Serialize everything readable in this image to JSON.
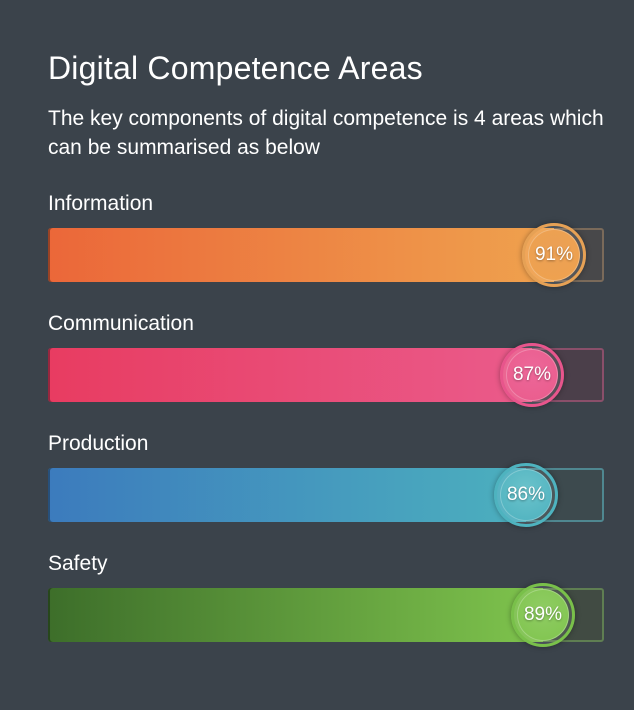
{
  "header": {
    "title": "Digital Competence Areas",
    "subtitle": "The key components of digital competence is 4 areas which can be summarised as below"
  },
  "skills": [
    {
      "label": "Information",
      "value_text": "91%",
      "value": 0.91,
      "gradient_start": "#eb6739",
      "gradient_end": "#efa24e",
      "track_color": "#48484a",
      "track_border": "#7a6a5a",
      "knob_border": "#e6a155",
      "knob_fill": "#eba055"
    },
    {
      "label": "Communication",
      "value_text": "87%",
      "value": 0.87,
      "gradient_start": "#e83c61",
      "gradient_end": "#ea5b8b",
      "track_color": "#4b3f4a",
      "track_border": "#8a4f6a",
      "knob_border": "#e8558c",
      "knob_fill": "#ec6799"
    },
    {
      "label": "Production",
      "value_text": "86%",
      "value": 0.86,
      "gradient_start": "#3c7bbd",
      "gradient_end": "#4cb0be",
      "track_color": "#3d4a4e",
      "track_border": "#4f8790",
      "knob_border": "#4eb3bf",
      "knob_fill": "#6bc3cb"
    },
    {
      "label": "Safety",
      "value_text": "89%",
      "value": 0.89,
      "gradient_start": "#3d6e2a",
      "gradient_end": "#7fc44d",
      "track_color": "#414b43",
      "track_border": "#5f7e52",
      "knob_border": "#79c04a",
      "knob_fill": "#8fcc63"
    }
  ]
}
